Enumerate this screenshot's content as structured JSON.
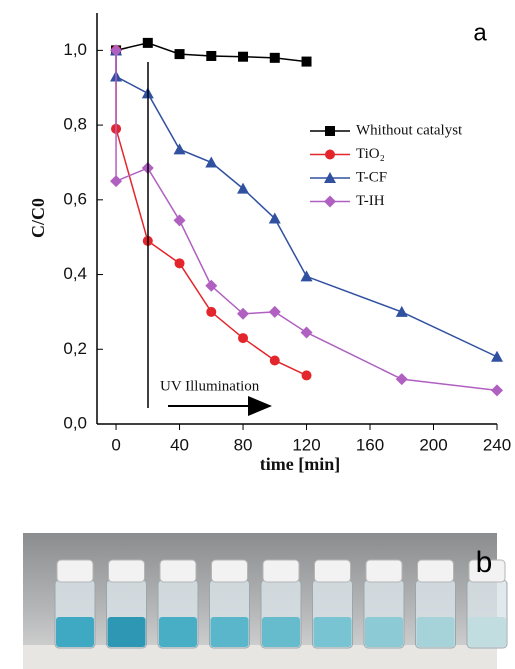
{
  "chart_data": {
    "type": "line",
    "x_label": "time [min]",
    "y_label": "C/C0",
    "panel_a": "a",
    "panel_b": "b",
    "annotation": "UV Illumination",
    "xlim": [
      -12,
      240
    ],
    "ylim": [
      0,
      1.1
    ],
    "xticks": [
      0,
      40,
      80,
      120,
      160,
      200,
      240
    ],
    "yticks": [
      {
        "value": 0,
        "label": "0,0"
      },
      {
        "value": 0.2,
        "label": "0,2"
      },
      {
        "value": 0.4,
        "label": "0,4"
      },
      {
        "value": 0.6,
        "label": "0,6"
      },
      {
        "value": 0.8,
        "label": "0,8"
      },
      {
        "value": 1.0,
        "label": "1,0"
      }
    ],
    "series": [
      {
        "name": "Whithout catalyst",
        "color": "#000000",
        "marker": "square",
        "x": [
          0,
          20,
          40,
          60,
          80,
          100,
          120
        ],
        "values": [
          1.0,
          1.02,
          0.99,
          0.985,
          0.983,
          0.98,
          0.97
        ]
      },
      {
        "name": "TiO₂",
        "color": "#e3262b",
        "marker": "circle",
        "x": [
          0,
          0,
          20,
          40,
          60,
          80,
          100,
          120
        ],
        "values": [
          1.0,
          0.79,
          0.49,
          0.43,
          0.3,
          0.23,
          0.17,
          0.13
        ]
      },
      {
        "name": "T-CF",
        "color": "#3050a0",
        "marker": "triangle",
        "x": [
          0,
          0,
          20,
          40,
          60,
          80,
          100,
          120,
          180,
          240
        ],
        "values": [
          1.0,
          0.93,
          0.885,
          0.735,
          0.7,
          0.63,
          0.55,
          0.395,
          0.3,
          0.18
        ]
      },
      {
        "name": "T-IH",
        "color": "#b060c0",
        "marker": "diamond",
        "x": [
          0,
          0,
          20,
          40,
          60,
          80,
          100,
          120,
          180,
          240
        ],
        "values": [
          1.0,
          0.65,
          0.685,
          0.545,
          0.37,
          0.295,
          0.3,
          0.245,
          0.12,
          0.09
        ]
      }
    ]
  }
}
